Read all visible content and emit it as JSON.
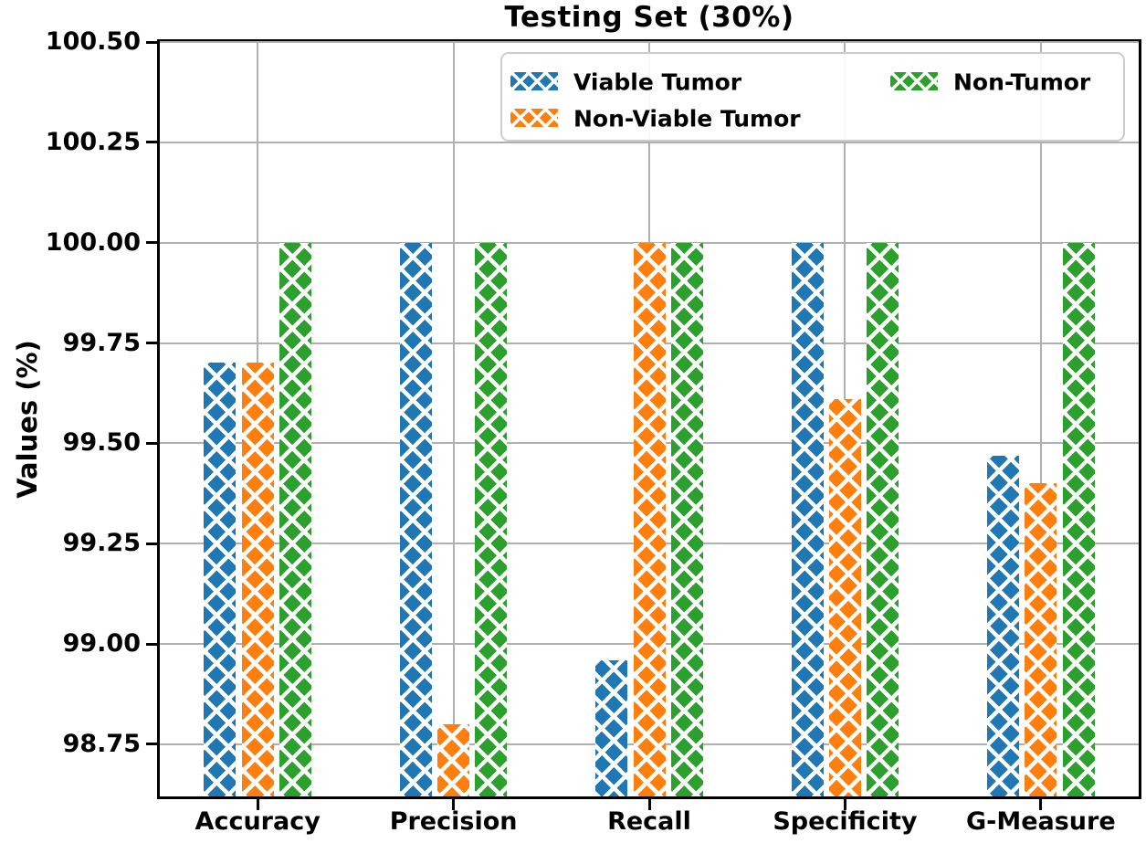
{
  "chart_data": {
    "type": "bar",
    "title": "Testing Set (30%)",
    "ylabel": "Values (%)",
    "xlabel": "",
    "categories": [
      "Accuracy",
      "Precision",
      "Recall",
      "Specificity",
      "G-Measure"
    ],
    "series": [
      {
        "name": "Viable Tumor",
        "color": "#1f77b4",
        "values": [
          99.7,
          100.0,
          98.96,
          100.0,
          99.47
        ]
      },
      {
        "name": "Non-Viable Tumor",
        "color": "#ff7f0e",
        "values": [
          99.7,
          98.8,
          100.0,
          99.61,
          99.4
        ]
      },
      {
        "name": "Non-Tumor",
        "color": "#2ca02c",
        "values": [
          100.0,
          100.0,
          100.0,
          100.0,
          100.0
        ]
      }
    ],
    "ylim": [
      98.62,
      100.5
    ],
    "yticks": [
      100.5,
      100.25,
      100.0,
      99.75,
      99.5,
      99.25,
      99.0,
      98.75
    ],
    "ytick_decimals": 2,
    "grid": true,
    "grid_color": "#b0b0b0",
    "hatch": "x",
    "hatch_color": "#ffffff",
    "spine_color": "#000000",
    "legend_position": "upper right",
    "legend_columns": 2
  }
}
